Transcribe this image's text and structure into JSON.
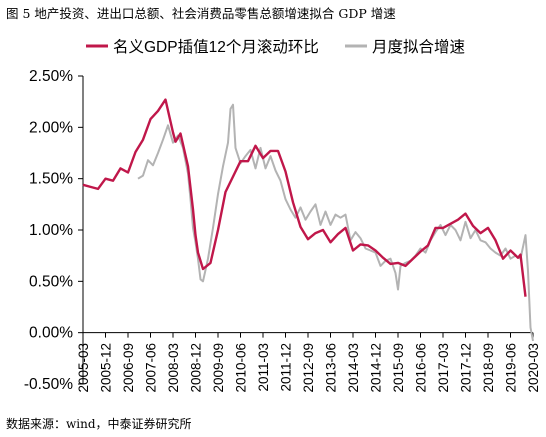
{
  "caption": "图 5 地产投资、进出口总额、社会消费品零售总额增速拟合 GDP 增速",
  "source": "数据来源：wind，中泰证券研究所",
  "chart_data": {
    "type": "line",
    "title": "",
    "xlabel": "",
    "ylabel": "",
    "x_range": [
      "2005-03",
      "2020-03"
    ],
    "ylim": [
      -0.5,
      2.5
    ],
    "yticks": [
      -0.5,
      0.0,
      0.5,
      1.0,
      1.5,
      2.0,
      2.5
    ],
    "ytick_labels": [
      "-0.50%",
      "0.00%",
      "0.50%",
      "1.00%",
      "1.50%",
      "2.00%",
      "2.50%"
    ],
    "xtick_labels": [
      "2005-03",
      "2005-12",
      "2006-09",
      "2007-06",
      "2008-03",
      "2008-12",
      "2009-09",
      "2010-06",
      "2011-03",
      "2011-12",
      "2012-09",
      "2013-06",
      "2014-03",
      "2014-12",
      "2015-09",
      "2016-06",
      "2017-03",
      "2017-12",
      "2018-09",
      "2019-06",
      "2020-03"
    ],
    "grid": false,
    "legend_position": "top",
    "series": [
      {
        "name": "名义GDP插值12个月滚动环比",
        "color": "#c0174a",
        "points": [
          [
            "2005-03",
            1.44
          ],
          [
            "2005-06",
            1.42
          ],
          [
            "2005-09",
            1.4
          ],
          [
            "2005-12",
            1.5
          ],
          [
            "2006-03",
            1.48
          ],
          [
            "2006-06",
            1.6
          ],
          [
            "2006-09",
            1.56
          ],
          [
            "2006-12",
            1.76
          ],
          [
            "2007-03",
            1.88
          ],
          [
            "2007-06",
            2.08
          ],
          [
            "2007-09",
            2.16
          ],
          [
            "2007-12",
            2.27
          ],
          [
            "2008-03",
            1.95
          ],
          [
            "2008-04",
            1.86
          ],
          [
            "2008-06",
            1.94
          ],
          [
            "2008-09",
            1.62
          ],
          [
            "2008-11",
            1.2
          ],
          [
            "2008-12",
            0.95
          ],
          [
            "2009-01",
            0.78
          ],
          [
            "2009-03",
            0.62
          ],
          [
            "2009-06",
            0.68
          ],
          [
            "2009-09",
            1.0
          ],
          [
            "2009-12",
            1.37
          ],
          [
            "2010-03",
            1.52
          ],
          [
            "2010-06",
            1.67
          ],
          [
            "2010-09",
            1.67
          ],
          [
            "2010-12",
            1.82
          ],
          [
            "2011-03",
            1.7
          ],
          [
            "2011-06",
            1.77
          ],
          [
            "2011-09",
            1.77
          ],
          [
            "2011-12",
            1.57
          ],
          [
            "2012-03",
            1.27
          ],
          [
            "2012-06",
            1.03
          ],
          [
            "2012-09",
            0.91
          ],
          [
            "2012-12",
            0.97
          ],
          [
            "2013-03",
            1.0
          ],
          [
            "2013-06",
            0.88
          ],
          [
            "2013-09",
            0.96
          ],
          [
            "2013-12",
            1.02
          ],
          [
            "2014-03",
            0.8
          ],
          [
            "2014-06",
            0.86
          ],
          [
            "2014-09",
            0.85
          ],
          [
            "2014-12",
            0.8
          ],
          [
            "2015-03",
            0.73
          ],
          [
            "2015-06",
            0.67
          ],
          [
            "2015-09",
            0.68
          ],
          [
            "2015-12",
            0.65
          ],
          [
            "2016-03",
            0.72
          ],
          [
            "2016-06",
            0.79
          ],
          [
            "2016-09",
            0.85
          ],
          [
            "2016-12",
            1.02
          ],
          [
            "2017-03",
            1.02
          ],
          [
            "2017-06",
            1.06
          ],
          [
            "2017-09",
            1.1
          ],
          [
            "2017-12",
            1.16
          ],
          [
            "2018-03",
            1.04
          ],
          [
            "2018-06",
            0.97
          ],
          [
            "2018-09",
            1.02
          ],
          [
            "2018-12",
            0.9
          ],
          [
            "2019-03",
            0.72
          ],
          [
            "2019-06",
            0.8
          ],
          [
            "2019-09",
            0.73
          ],
          [
            "2019-10",
            0.76
          ],
          [
            "2019-12",
            0.35
          ]
        ]
      },
      {
        "name": "月度拟合增速",
        "color": "#b3b3b3",
        "points": [
          [
            "2007-01",
            1.5
          ],
          [
            "2007-03",
            1.53
          ],
          [
            "2007-05",
            1.68
          ],
          [
            "2007-07",
            1.63
          ],
          [
            "2007-09",
            1.75
          ],
          [
            "2007-11",
            1.88
          ],
          [
            "2008-01",
            2.02
          ],
          [
            "2008-03",
            1.85
          ],
          [
            "2008-05",
            1.92
          ],
          [
            "2008-07",
            1.8
          ],
          [
            "2008-09",
            1.55
          ],
          [
            "2008-10",
            1.3
          ],
          [
            "2008-11",
            1.02
          ],
          [
            "2008-12",
            0.88
          ],
          [
            "2009-01",
            0.72
          ],
          [
            "2009-02",
            0.52
          ],
          [
            "2009-03",
            0.5
          ],
          [
            "2009-05",
            0.72
          ],
          [
            "2009-07",
            1.02
          ],
          [
            "2009-09",
            1.35
          ],
          [
            "2009-11",
            1.62
          ],
          [
            "2010-01",
            1.85
          ],
          [
            "2010-02",
            2.18
          ],
          [
            "2010-03",
            2.22
          ],
          [
            "2010-04",
            1.8
          ],
          [
            "2010-06",
            1.65
          ],
          [
            "2010-08",
            1.72
          ],
          [
            "2010-10",
            1.78
          ],
          [
            "2010-12",
            1.6
          ],
          [
            "2011-02",
            1.8
          ],
          [
            "2011-04",
            1.6
          ],
          [
            "2011-06",
            1.72
          ],
          [
            "2011-08",
            1.58
          ],
          [
            "2011-10",
            1.48
          ],
          [
            "2011-12",
            1.3
          ],
          [
            "2012-02",
            1.2
          ],
          [
            "2012-04",
            1.12
          ],
          [
            "2012-06",
            1.22
          ],
          [
            "2012-08",
            1.1
          ],
          [
            "2012-10",
            1.18
          ],
          [
            "2012-12",
            1.25
          ],
          [
            "2013-02",
            1.05
          ],
          [
            "2013-04",
            1.18
          ],
          [
            "2013-06",
            1.05
          ],
          [
            "2013-08",
            1.15
          ],
          [
            "2013-10",
            1.12
          ],
          [
            "2013-12",
            1.15
          ],
          [
            "2014-02",
            0.9
          ],
          [
            "2014-04",
            0.98
          ],
          [
            "2014-06",
            0.92
          ],
          [
            "2014-08",
            0.82
          ],
          [
            "2014-10",
            0.8
          ],
          [
            "2014-12",
            0.78
          ],
          [
            "2015-02",
            0.65
          ],
          [
            "2015-04",
            0.7
          ],
          [
            "2015-06",
            0.72
          ],
          [
            "2015-08",
            0.58
          ],
          [
            "2015-09",
            0.42
          ],
          [
            "2015-10",
            0.65
          ],
          [
            "2015-12",
            0.68
          ],
          [
            "2016-02",
            0.7
          ],
          [
            "2016-04",
            0.75
          ],
          [
            "2016-06",
            0.82
          ],
          [
            "2016-08",
            0.78
          ],
          [
            "2016-10",
            0.9
          ],
          [
            "2016-12",
            0.98
          ],
          [
            "2017-02",
            1.05
          ],
          [
            "2017-04",
            0.95
          ],
          [
            "2017-06",
            1.05
          ],
          [
            "2017-08",
            1.0
          ],
          [
            "2017-10",
            0.9
          ],
          [
            "2017-12",
            1.08
          ],
          [
            "2018-02",
            0.92
          ],
          [
            "2018-04",
            1.0
          ],
          [
            "2018-06",
            0.9
          ],
          [
            "2018-08",
            0.88
          ],
          [
            "2018-10",
            0.82
          ],
          [
            "2018-12",
            0.78
          ],
          [
            "2019-02",
            0.75
          ],
          [
            "2019-04",
            0.82
          ],
          [
            "2019-06",
            0.72
          ],
          [
            "2019-08",
            0.75
          ],
          [
            "2019-10",
            0.72
          ],
          [
            "2019-12",
            0.95
          ],
          [
            "2020-01",
            0.6
          ],
          [
            "2020-02",
            0.05
          ],
          [
            "2020-03",
            -0.08
          ]
        ]
      }
    ]
  }
}
